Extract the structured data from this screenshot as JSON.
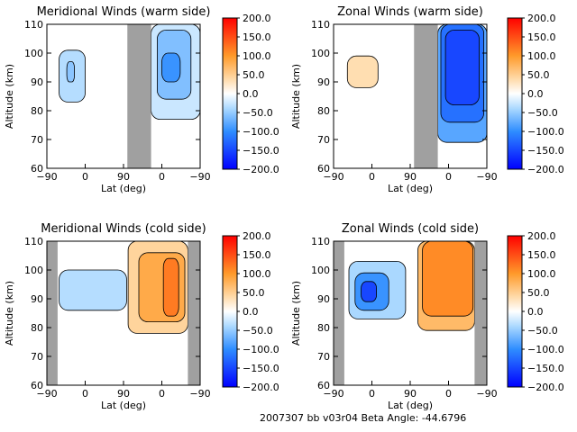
{
  "footer": "2007307 bb v03r04   Beta Angle: -44.6796",
  "colors": {
    "gap": "#a0a0a0",
    "frame": "#000000"
  },
  "colorbar": {
    "ticks": [
      "200.0",
      "150.0",
      "100.0",
      "50.0",
      "0.0",
      "−50.0",
      "−100.0",
      "−150.0",
      "−200.0"
    ],
    "range": [
      -200,
      200
    ],
    "stops": [
      {
        "v": -200,
        "c": "#0000ff"
      },
      {
        "v": -100,
        "c": "#2f8dff"
      },
      {
        "v": -40,
        "c": "#aad8ff"
      },
      {
        "v": 0,
        "c": "#ffffff"
      },
      {
        "v": 40,
        "c": "#ffd9a6"
      },
      {
        "v": 100,
        "c": "#ff9a2a"
      },
      {
        "v": 200,
        "c": "#ff0000"
      }
    ]
  },
  "chart_data": [
    {
      "type": "heatmap",
      "title": "Meridional Winds (warm side)",
      "xlabel": "Lat (deg)",
      "ylabel": "Altitude (km)",
      "xticks": [
        "−90",
        "0",
        "90",
        "0",
        "−90"
      ],
      "yticks": [
        "60",
        "70",
        "80",
        "90",
        "100",
        "110"
      ],
      "ylim": [
        60,
        110
      ],
      "gap": [
        0.525,
        0.68
      ],
      "shapes": [
        {
          "x": 0.08,
          "y0": 83,
          "y1": 101,
          "w": 0.17,
          "fill": -35
        },
        {
          "x": 0.13,
          "y0": 90,
          "y1": 97,
          "w": 0.05,
          "fill": -55
        },
        {
          "x": 0.68,
          "y0": 77,
          "y1": 110,
          "w": 0.32,
          "fill": -25
        },
        {
          "x": 0.72,
          "y0": 84,
          "y1": 108,
          "w": 0.22,
          "fill": -60
        },
        {
          "x": 0.75,
          "y0": 90,
          "y1": 100,
          "w": 0.12,
          "fill": -95
        }
      ]
    },
    {
      "type": "heatmap",
      "title": "Zonal Winds (warm side)",
      "xlabel": "Lat (deg)",
      "ylabel": "Altitude (km)",
      "xticks": [
        "−90",
        "0",
        "90",
        "0",
        "−90"
      ],
      "yticks": [
        "60",
        "70",
        "80",
        "90",
        "100",
        "110"
      ],
      "ylim": [
        60,
        110
      ],
      "gap": [
        0.525,
        0.68
      ],
      "shapes": [
        {
          "x": 0.09,
          "y0": 88,
          "y1": 99,
          "w": 0.2,
          "fill": 35
        },
        {
          "x": 0.68,
          "y0": 69,
          "y1": 110,
          "w": 0.32,
          "fill": -80
        },
        {
          "x": 0.7,
          "y0": 76,
          "y1": 110,
          "w": 0.28,
          "fill": -120
        },
        {
          "x": 0.73,
          "y0": 82,
          "y1": 108,
          "w": 0.22,
          "fill": -150
        }
      ]
    },
    {
      "type": "heatmap",
      "title": "Meridional Winds (cold side)",
      "xlabel": "Lat (deg)",
      "ylabel": "Altitude (km)",
      "xticks": [
        "−90",
        "0",
        "90",
        "0",
        "−90"
      ],
      "yticks": [
        "60",
        "70",
        "80",
        "90",
        "100",
        "110"
      ],
      "ylim": [
        60,
        110
      ],
      "gap": [
        0.0,
        0.07
      ],
      "gap2": [
        0.92,
        1.0
      ],
      "shapes": [
        {
          "x": 0.08,
          "y0": 86,
          "y1": 100,
          "w": 0.44,
          "fill": -35
        },
        {
          "x": 0.53,
          "y0": 78,
          "y1": 110,
          "w": 0.39,
          "fill": 45
        },
        {
          "x": 0.6,
          "y0": 82,
          "y1": 106,
          "w": 0.3,
          "fill": 85
        },
        {
          "x": 0.76,
          "y0": 84,
          "y1": 104,
          "w": 0.1,
          "fill": 120
        }
      ]
    },
    {
      "type": "heatmap",
      "title": "Zonal Winds (cold side)",
      "xlabel": "Lat (deg)",
      "ylabel": "Altitude (km)",
      "xticks": [
        "−90",
        "0",
        "90",
        "0",
        "−90"
      ],
      "yticks": [
        "60",
        "70",
        "80",
        "90",
        "100",
        "110"
      ],
      "ylim": [
        60,
        110
      ],
      "gap": [
        0.0,
        0.07
      ],
      "gap2": [
        0.92,
        1.0
      ],
      "shapes": [
        {
          "x": 0.1,
          "y0": 83,
          "y1": 103,
          "w": 0.37,
          "fill": -40
        },
        {
          "x": 0.14,
          "y0": 86,
          "y1": 99,
          "w": 0.22,
          "fill": -95
        },
        {
          "x": 0.18,
          "y0": 89,
          "y1": 96,
          "w": 0.1,
          "fill": -150
        },
        {
          "x": 0.55,
          "y0": 79,
          "y1": 110,
          "w": 0.37,
          "fill": 70
        },
        {
          "x": 0.58,
          "y0": 84,
          "y1": 110,
          "w": 0.33,
          "fill": 110
        }
      ]
    }
  ]
}
